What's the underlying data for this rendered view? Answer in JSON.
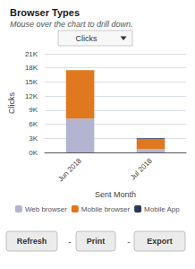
{
  "chart_data": {
    "type": "bar",
    "title": "Browser Types",
    "subtitle": "Mouse over the chart to drill down.",
    "annotations": [
      "Clicks",
      "Refresh",
      "-",
      "Print",
      "-",
      "Export"
    ],
    "categories": [
      "Jun 2018",
      "Jul 2018"
    ],
    "series": [
      {
        "name": "Web browser",
        "color": "#b3b5d0",
        "values": [
          7200,
          700
        ]
      },
      {
        "name": "Mobile browser",
        "color": "#e07820",
        "values": [
          10300,
          2100
        ]
      },
      {
        "name": "Mobile App",
        "color": "#2b3a52",
        "values": [
          0,
          200
        ]
      }
    ],
    "stacked": true,
    "xlabel": "Sent Month",
    "ylabel": "Clicks",
    "ylim": [
      0,
      21000
    ],
    "yticks": [
      {
        "value": 0,
        "label": "0K"
      },
      {
        "value": 3000,
        "label": "3K"
      },
      {
        "value": 6000,
        "label": "6K"
      },
      {
        "value": 9000,
        "label": "9K"
      },
      {
        "value": 12000,
        "label": "12K"
      },
      {
        "value": 15000,
        "label": "15K"
      },
      {
        "value": 18000,
        "label": "18K"
      },
      {
        "value": 21000,
        "label": "21K"
      }
    ],
    "grid": true,
    "legend": "bottom"
  }
}
